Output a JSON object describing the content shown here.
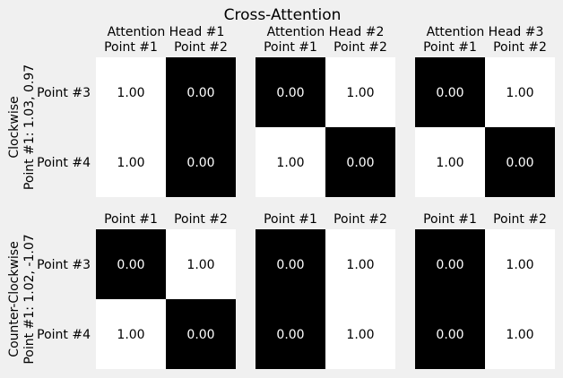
{
  "figure": {
    "title": "Cross-Attention",
    "background": "#f0f0f0",
    "colors": {
      "high": "#ffffff",
      "low": "#000000"
    }
  },
  "chart_data": {
    "type": "heatmap",
    "title": "Cross-Attention",
    "value_format": "2 decimals",
    "column_titles": [
      "Attention Head #1",
      "Attention Head #2",
      "Attention Head #3"
    ],
    "rows": [
      {
        "label": "Clockwise\nPoint #1: 1.03, 0.97",
        "label_lines": [
          "Clockwise",
          "Point #1: 1.03, 0.97"
        ],
        "x_ticks": [
          "Point #1",
          "Point #2"
        ],
        "y_ticks": [
          "Point #3",
          "Point #4"
        ],
        "heads": [
          [
            [
              1.0,
              0.0
            ],
            [
              1.0,
              0.0
            ]
          ],
          [
            [
              0.0,
              1.0
            ],
            [
              1.0,
              0.0
            ]
          ],
          [
            [
              0.0,
              1.0
            ],
            [
              1.0,
              0.0
            ]
          ]
        ]
      },
      {
        "label": "Counter-Clockwise\nPoint #1: 1.02, -1.07",
        "label_lines": [
          "Counter-Clockwise",
          "Point #1: 1.02, -1.07"
        ],
        "x_ticks": [
          "Point #1",
          "Point #2"
        ],
        "y_ticks": [
          "Point #3",
          "Point #4"
        ],
        "heads": [
          [
            [
              0.0,
              1.0
            ],
            [
              1.0,
              0.0
            ]
          ],
          [
            [
              0.0,
              1.0
            ],
            [
              0.0,
              1.0
            ]
          ],
          [
            [
              0.0,
              1.0
            ],
            [
              0.0,
              1.0
            ]
          ]
        ]
      }
    ]
  }
}
